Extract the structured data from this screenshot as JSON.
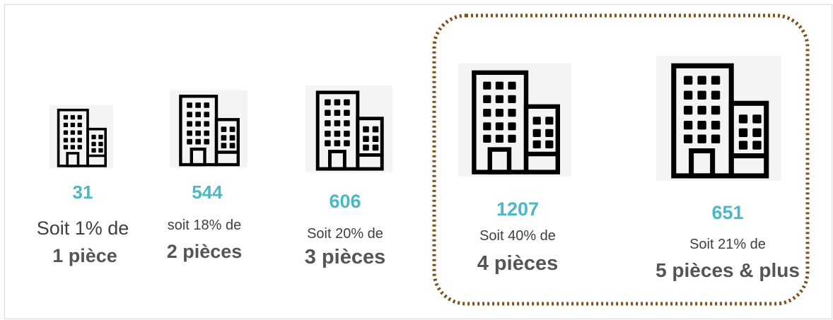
{
  "items": [
    {
      "count": "31",
      "caption": "Soit 1% de",
      "label": "1 pièce"
    },
    {
      "count": "544",
      "caption": "soit 18% de",
      "label": "2 pièces"
    },
    {
      "count": "606",
      "caption": "Soit 20% de",
      "label": "3 pièces"
    },
    {
      "count": "1207",
      "caption": "Soit 40% de",
      "label": "4 pièces"
    },
    {
      "count": "651",
      "caption": "Soit 21% de",
      "label": "5 pièces & plus"
    }
  ]
}
